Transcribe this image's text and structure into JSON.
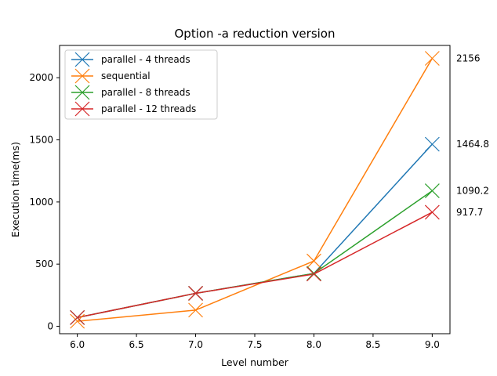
{
  "chart_data": {
    "type": "line",
    "title": "Option -a reduction version",
    "xlabel": "Level number",
    "ylabel": "Execution time(ms)",
    "xlim": [
      5.85,
      9.15
    ],
    "ylim": [
      -60,
      2260
    ],
    "x_ticks": [
      6.0,
      6.5,
      7.0,
      7.5,
      8.0,
      8.5,
      9.0
    ],
    "y_ticks": [
      0,
      500,
      1000,
      1500,
      2000
    ],
    "x_tick_labels": [
      "6.0",
      "6.5",
      "7.0",
      "7.5",
      "8.0",
      "8.5",
      "9.0"
    ],
    "y_tick_labels": [
      "0",
      "500",
      "1000",
      "1500",
      "2000"
    ],
    "legend_position": "top-left",
    "grid": false,
    "x": [
      6,
      7,
      8,
      9
    ],
    "series": [
      {
        "name": "parallel - 4 threads",
        "color": "#1f77b4",
        "values": [
          70,
          265,
          425,
          1464.8
        ]
      },
      {
        "name": "sequential",
        "color": "#ff7f0e",
        "values": [
          40,
          130,
          525,
          2156
        ]
      },
      {
        "name": "parallel - 8 threads",
        "color": "#2ca02c",
        "values": [
          70,
          265,
          425,
          1090.2
        ]
      },
      {
        "name": "parallel - 12 threads",
        "color": "#d62728",
        "values": [
          70,
          265,
          420,
          917.7
        ]
      }
    ],
    "annotations": [
      {
        "text": "2156",
        "value": 2156
      },
      {
        "text": "1464.8",
        "value": 1464.8
      },
      {
        "text": "1090.2",
        "value": 1090.2
      },
      {
        "text": "917.7",
        "value": 917.7
      }
    ]
  }
}
